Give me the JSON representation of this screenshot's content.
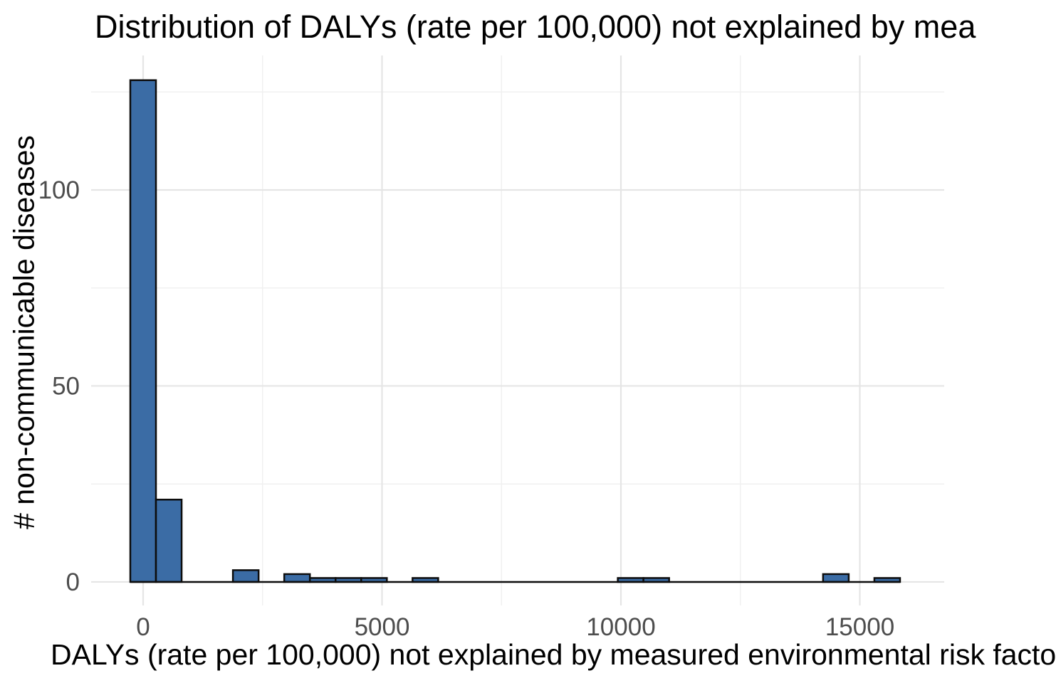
{
  "chart_data": {
    "type": "histogram",
    "title": "Distribution of DALYs (rate per 100,000) not explained by mea",
    "xlabel": "DALYs (rate per 100,000) not explained by measured environmental risk facto",
    "ylabel": "# non-communicable diseases",
    "bar_fill": "#3B6CA5",
    "bar_stroke": "#0D0D0D",
    "grid_major_color": "#E5E5E5",
    "grid_minor_color": "#F0F0F0",
    "tick_label_color": "#4D4D4D",
    "binwidth": 537,
    "bin_centers_note": "bin i is centered at i * binwidth, starting at 0",
    "bin_counts": [
      128,
      21,
      0,
      0,
      3,
      0,
      2,
      1,
      1,
      1,
      0,
      1,
      0,
      0,
      0,
      0,
      0,
      0,
      0,
      1,
      1,
      0,
      0,
      0,
      0,
      0,
      0,
      2,
      0,
      1
    ],
    "x_major_ticks": [
      0,
      5000,
      10000,
      15000
    ],
    "x_minor_ticks": [
      2500,
      7500,
      12500
    ],
    "y_major_ticks": [
      0,
      50,
      100
    ],
    "y_minor_ticks": [
      25,
      75,
      125
    ],
    "x_tick_labels": [
      "0",
      "5000",
      "10000",
      "15000"
    ],
    "y_tick_labels": [
      "0",
      "50",
      "100"
    ],
    "xlim": [
      -1088,
      16766
    ],
    "ylim": [
      -6,
      134.3
    ],
    "grid": "on",
    "legend": "none"
  }
}
